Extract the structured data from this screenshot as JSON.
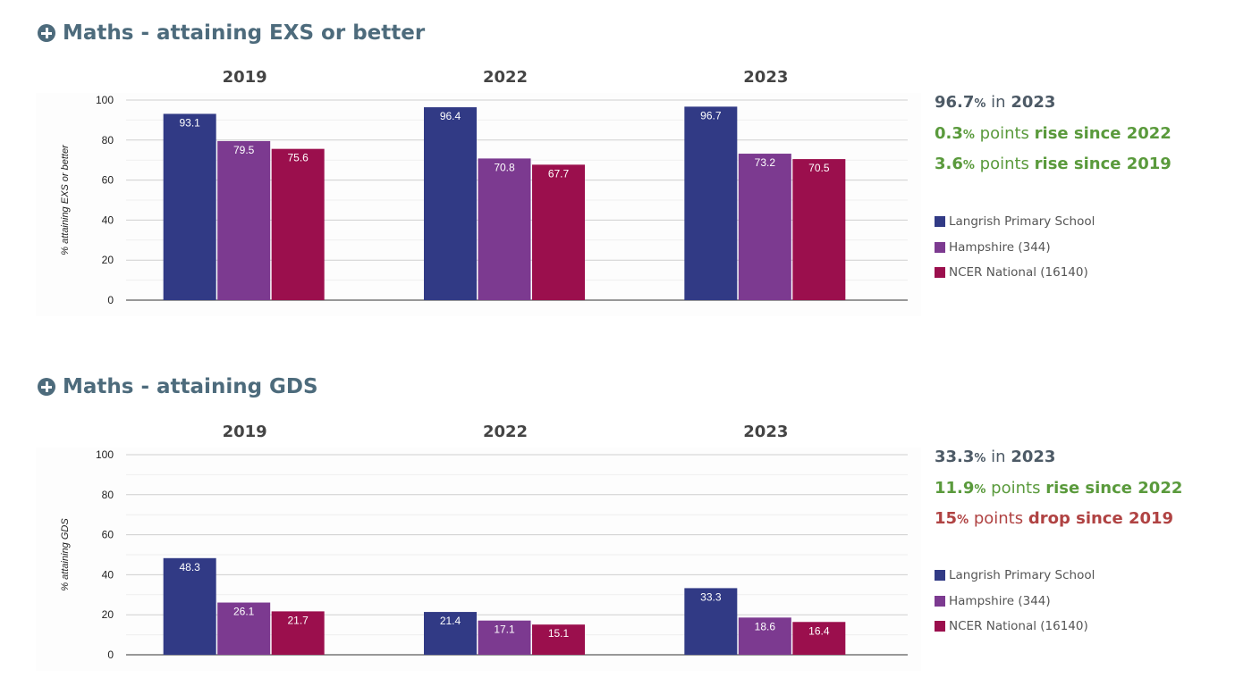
{
  "colors": {
    "school": "#313a85",
    "hampshire": "#7c3a90",
    "national": "#9b0f4d",
    "neutral": "#4d5a66",
    "rise": "#5a9a3c",
    "drop": "#b04343",
    "header": "#4d6b7c"
  },
  "legend": [
    {
      "label": "Langrish Primary School",
      "color": "#313a85"
    },
    {
      "label": "Hampshire (344)",
      "color": "#7c3a90"
    },
    {
      "label": "NCER National (16140)",
      "color": "#9b0f4d"
    }
  ],
  "sections": [
    {
      "title": "Maths - attaining EXS or better",
      "summary": {
        "line1": {
          "value": "96.7",
          "pct": "%",
          "mid": " in ",
          "year": "2023"
        },
        "line2": {
          "value": "0.3",
          "pct": "%",
          "mid": " points ",
          "tail": "rise since 2022"
        },
        "line3": {
          "value": "3.6",
          "pct": "%",
          "mid": " points ",
          "tail": "rise since 2019"
        }
      }
    },
    {
      "title": "Maths - attaining GDS",
      "summary": {
        "line1": {
          "value": "33.3",
          "pct": "%",
          "mid": " in ",
          "year": "2023"
        },
        "line2": {
          "value": "11.9",
          "pct": "%",
          "mid": " points ",
          "tail": "rise since 2022"
        },
        "line3": {
          "value": "15",
          "pct": "%",
          "mid": " points ",
          "tail": "drop since 2019"
        }
      }
    }
  ],
  "chart_data": [
    {
      "type": "bar",
      "title": "Maths - attaining EXS or better",
      "ylabel": "% attaining EXS or better",
      "categories": [
        "2019",
        "2022",
        "2023"
      ],
      "ylim": [
        0,
        100
      ],
      "yticks": [
        0,
        20,
        40,
        60,
        80,
        100
      ],
      "series": [
        {
          "name": "Langrish Primary School",
          "values": [
            93.1,
            96.4,
            96.7
          ]
        },
        {
          "name": "Hampshire (344)",
          "values": [
            79.5,
            70.8,
            73.2
          ]
        },
        {
          "name": "NCER National (16140)",
          "values": [
            75.6,
            67.7,
            70.5
          ]
        }
      ]
    },
    {
      "type": "bar",
      "title": "Maths - attaining GDS",
      "ylabel": "% attaining GDS",
      "categories": [
        "2019",
        "2022",
        "2023"
      ],
      "ylim": [
        0,
        100
      ],
      "yticks": [
        0,
        20,
        40,
        60,
        80,
        100
      ],
      "series": [
        {
          "name": "Langrish Primary School",
          "values": [
            48.3,
            21.4,
            33.3
          ]
        },
        {
          "name": "Hampshire (344)",
          "values": [
            26.1,
            17.1,
            18.6
          ]
        },
        {
          "name": "NCER National (16140)",
          "values": [
            21.7,
            15.1,
            16.4
          ]
        }
      ]
    }
  ]
}
